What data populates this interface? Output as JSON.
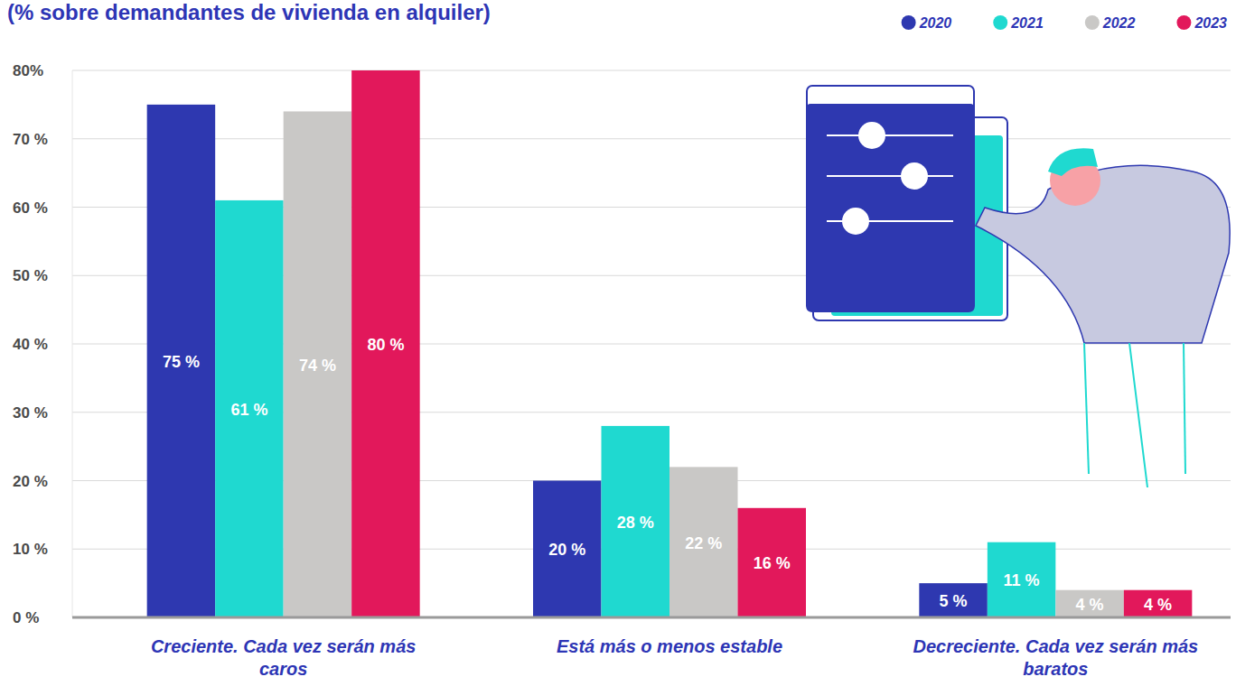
{
  "chart_data": {
    "type": "bar",
    "title": "(% sobre demandantes de vivienda en alquiler)",
    "categories": [
      "Creciente. Cada vez serán más caros",
      "Está más o menos estable",
      "Decreciente. Cada vez serán más baratos"
    ],
    "series": [
      {
        "name": "2020",
        "color": "#2e38b0",
        "values": [
          75,
          20,
          5
        ],
        "value_labels": [
          "75 %",
          "20 %",
          "5 %"
        ]
      },
      {
        "name": "2021",
        "color": "#1fd9d0",
        "values": [
          61,
          28,
          11
        ],
        "value_labels": [
          "61 %",
          "28 %",
          "11 %"
        ]
      },
      {
        "name": "2022",
        "color": "#c9c8c6",
        "values": [
          74,
          22,
          4
        ],
        "value_labels": [
          "74 %",
          "22 %",
          "4 %"
        ]
      },
      {
        "name": "2023",
        "color": "#e2185b",
        "values": [
          80,
          16,
          4
        ],
        "value_labels": [
          "80 %",
          "16 %",
          "4 %"
        ]
      }
    ],
    "ylim": [
      0,
      80
    ],
    "yticks": [
      {
        "value": 0,
        "label": "0 %"
      },
      {
        "value": 10,
        "label": "10 %"
      },
      {
        "value": 20,
        "label": "20 %"
      },
      {
        "value": 30,
        "label": "30 %"
      },
      {
        "value": 40,
        "label": "40 %"
      },
      {
        "value": 50,
        "label": "50 %"
      },
      {
        "value": 60,
        "label": "60 %"
      },
      {
        "value": 70,
        "label": "70 %"
      },
      {
        "value": 80,
        "label": "80%"
      }
    ],
    "grid": true,
    "legend": "top-right",
    "data_labels": true
  }
}
